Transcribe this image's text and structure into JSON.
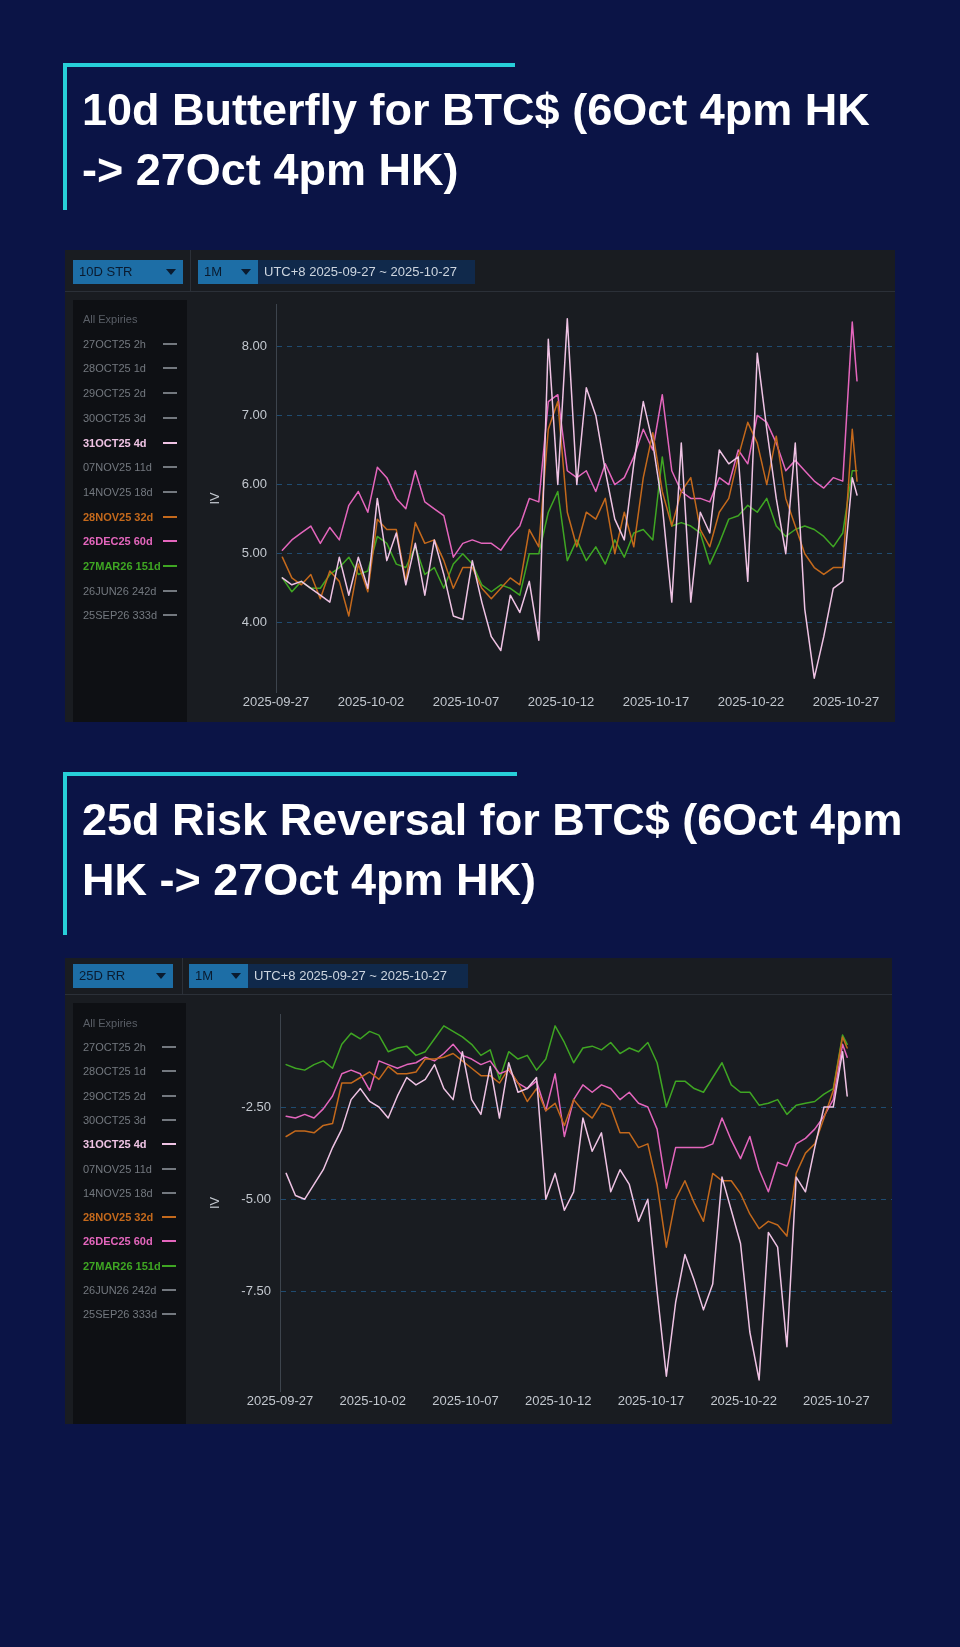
{
  "chart_data": [
    {
      "type": "line",
      "title": "10d Butterfly for BTC$ (6Oct 4pm HK -> 27Oct 4pm HK)",
      "subtitle": "UTC+8 2025-09-27 ~ 2025-10-27",
      "annotations": [
        "10D STR",
        "1M"
      ],
      "ylabel": "IV",
      "legend_title": "All Expiries",
      "legend": "left",
      "grid": "y",
      "marker": "none",
      "line_style": "solid",
      "x": [
        "2025-09-27T08:00",
        "2025-09-27T20:00",
        "2025-09-28T08:00",
        "2025-09-28T20:00",
        "2025-09-29T08:00",
        "2025-09-29T20:00",
        "2025-09-30T08:00",
        "2025-09-30T20:00",
        "2025-10-01T08:00",
        "2025-10-01T20:00",
        "2025-10-02T08:00",
        "2025-10-02T20:00",
        "2025-10-03T08:00",
        "2025-10-03T20:00",
        "2025-10-04T08:00",
        "2025-10-04T20:00",
        "2025-10-05T08:00",
        "2025-10-05T20:00",
        "2025-10-06T08:00",
        "2025-10-06T20:00",
        "2025-10-07T08:00",
        "2025-10-07T20:00",
        "2025-10-08T08:00",
        "2025-10-08T20:00",
        "2025-10-09T08:00",
        "2025-10-09T20:00",
        "2025-10-10T08:00",
        "2025-10-10T20:00",
        "2025-10-11T08:00",
        "2025-10-11T20:00",
        "2025-10-12T08:00",
        "2025-10-12T20:00",
        "2025-10-13T08:00",
        "2025-10-13T20:00",
        "2025-10-14T08:00",
        "2025-10-14T20:00",
        "2025-10-15T08:00",
        "2025-10-15T20:00",
        "2025-10-16T08:00",
        "2025-10-16T20:00",
        "2025-10-17T08:00",
        "2025-10-17T20:00",
        "2025-10-18T08:00",
        "2025-10-18T20:00",
        "2025-10-19T08:00",
        "2025-10-19T20:00",
        "2025-10-20T08:00",
        "2025-10-20T20:00",
        "2025-10-21T08:00",
        "2025-10-21T20:00",
        "2025-10-22T08:00",
        "2025-10-22T20:00",
        "2025-10-23T08:00",
        "2025-10-23T20:00",
        "2025-10-24T08:00",
        "2025-10-24T20:00",
        "2025-10-25T08:00",
        "2025-10-25T20:00",
        "2025-10-26T08:00",
        "2025-10-26T20:00",
        "2025-10-27T08:00",
        "2025-10-27T14:00"
      ],
      "xlim": [
        "2025-09-27T00:00",
        "2025-10-29T14:00"
      ],
      "xticks": [
        "2025-09-27",
        "2025-10-02",
        "2025-10-07",
        "2025-10-12",
        "2025-10-17",
        "2025-10-22",
        "2025-10-27"
      ],
      "ylim": [
        3.0,
        8.6
      ],
      "yticks": [
        {
          "value": 4,
          "label": "4.00"
        },
        {
          "value": 5,
          "label": "5.00"
        },
        {
          "value": 6,
          "label": "6.00"
        },
        {
          "value": 7,
          "label": "7.00"
        },
        {
          "value": 8,
          "label": "8.00"
        }
      ],
      "series": [
        {
          "name": "27OCT25 2h",
          "color": "#73787f",
          "values": [
            null,
            null,
            null,
            null,
            null,
            null,
            null,
            null,
            null,
            null,
            null,
            null,
            null,
            null,
            null,
            null,
            null,
            null,
            null,
            null,
            null,
            null,
            null,
            null,
            null,
            null,
            null,
            null,
            null,
            null,
            null,
            null,
            null,
            null,
            null,
            null,
            null,
            null,
            null,
            null,
            null,
            null,
            null,
            null,
            null,
            null,
            null,
            null,
            null,
            null,
            null,
            null,
            null,
            null,
            null,
            null,
            null,
            null,
            null,
            null,
            null,
            null
          ]
        },
        {
          "name": "28OCT25 1d",
          "color": "#73787f",
          "values": [
            null,
            null,
            null,
            null,
            null,
            null,
            null,
            null,
            null,
            null,
            null,
            null,
            null,
            null,
            null,
            null,
            null,
            null,
            null,
            null,
            null,
            null,
            null,
            null,
            null,
            null,
            null,
            null,
            null,
            null,
            null,
            null,
            null,
            null,
            null,
            null,
            null,
            null,
            null,
            null,
            null,
            null,
            null,
            null,
            null,
            null,
            null,
            null,
            null,
            null,
            null,
            null,
            null,
            null,
            null,
            null,
            null,
            null,
            null,
            null,
            null,
            null
          ]
        },
        {
          "name": "29OCT25 2d",
          "color": "#73787f",
          "values": [
            null,
            null,
            null,
            null,
            null,
            null,
            null,
            null,
            null,
            null,
            null,
            null,
            null,
            null,
            null,
            null,
            null,
            null,
            null,
            null,
            null,
            null,
            null,
            null,
            null,
            null,
            null,
            null,
            null,
            null,
            null,
            null,
            null,
            null,
            null,
            null,
            null,
            null,
            null,
            null,
            null,
            null,
            null,
            null,
            null,
            null,
            null,
            null,
            null,
            null,
            null,
            null,
            null,
            null,
            null,
            null,
            null,
            null,
            null,
            null,
            null,
            null
          ]
        },
        {
          "name": "30OCT25 3d",
          "color": "#73787f",
          "values": [
            null,
            null,
            null,
            null,
            null,
            null,
            null,
            null,
            null,
            null,
            null,
            null,
            null,
            null,
            null,
            null,
            null,
            null,
            null,
            null,
            null,
            null,
            null,
            null,
            null,
            null,
            null,
            null,
            null,
            null,
            null,
            null,
            null,
            null,
            null,
            null,
            null,
            null,
            null,
            null,
            null,
            null,
            null,
            null,
            null,
            null,
            null,
            null,
            null,
            null,
            null,
            null,
            null,
            null,
            null,
            null,
            null,
            null,
            null,
            null,
            null,
            null
          ]
        },
        {
          "name": "31OCT25 4d",
          "color": "#efc3e4",
          "values": [
            4.65,
            4.55,
            4.6,
            4.5,
            4.4,
            4.3,
            4.95,
            4.4,
            4.95,
            4.5,
            5.8,
            4.9,
            5.3,
            4.55,
            5.15,
            4.4,
            5.2,
            4.7,
            4.1,
            4.05,
            4.9,
            4.3,
            3.8,
            3.6,
            4.4,
            4.15,
            4.6,
            3.75,
            8.1,
            6.0,
            8.4,
            6.0,
            7.4,
            7.0,
            6.2,
            5.5,
            5.2,
            6.3,
            7.2,
            6.6,
            5.7,
            4.3,
            6.6,
            4.3,
            5.6,
            5.3,
            6.5,
            6.3,
            6.4,
            4.6,
            7.9,
            6.8,
            5.8,
            5.0,
            6.6,
            4.2,
            3.2,
            3.8,
            4.5,
            4.6,
            6.1,
            5.85
          ]
        },
        {
          "name": "07NOV25 11d",
          "color": "#73787f",
          "values": [
            null,
            null,
            null,
            null,
            null,
            null,
            null,
            null,
            null,
            null,
            null,
            null,
            null,
            null,
            null,
            null,
            null,
            null,
            null,
            null,
            null,
            null,
            null,
            null,
            null,
            null,
            null,
            null,
            null,
            null,
            null,
            null,
            null,
            null,
            null,
            null,
            null,
            null,
            null,
            null,
            null,
            null,
            null,
            null,
            null,
            null,
            null,
            null,
            null,
            null,
            null,
            null,
            null,
            null,
            null,
            null,
            null,
            null,
            null,
            null,
            null,
            null
          ]
        },
        {
          "name": "14NOV25 18d",
          "color": "#73787f",
          "values": [
            null,
            null,
            null,
            null,
            null,
            null,
            null,
            null,
            null,
            null,
            null,
            null,
            null,
            null,
            null,
            null,
            null,
            null,
            null,
            null,
            null,
            null,
            null,
            null,
            null,
            null,
            null,
            null,
            null,
            null,
            null,
            null,
            null,
            null,
            null,
            null,
            null,
            null,
            null,
            null,
            null,
            null,
            null,
            null,
            null,
            null,
            null,
            null,
            null,
            null,
            null,
            null,
            null,
            null,
            null,
            null,
            null,
            null,
            null,
            null,
            null,
            null
          ]
        },
        {
          "name": "28NOV25 32d",
          "color": "#c4691c",
          "values": [
            4.95,
            4.65,
            4.55,
            4.7,
            4.35,
            4.75,
            4.6,
            4.1,
            4.85,
            4.45,
            5.5,
            5.35,
            5.35,
            4.6,
            5.45,
            5.15,
            5.2,
            4.9,
            4.5,
            4.8,
            4.8,
            4.5,
            4.35,
            4.5,
            4.65,
            4.55,
            5.35,
            5.1,
            6.8,
            7.2,
            5.6,
            5.1,
            5.6,
            5.5,
            5.8,
            5.0,
            5.6,
            5.1,
            6.1,
            6.75,
            5.9,
            5.4,
            5.9,
            6.1,
            5.35,
            5.1,
            5.6,
            5.8,
            6.4,
            6.9,
            6.6,
            6.0,
            6.7,
            5.8,
            5.4,
            5.0,
            4.8,
            4.7,
            4.8,
            4.8,
            6.8,
            6.05
          ]
        },
        {
          "name": "26DEC25 60d",
          "color": "#e466bd",
          "values": [
            5.05,
            5.2,
            5.3,
            5.4,
            5.15,
            5.38,
            5.2,
            5.7,
            5.9,
            5.6,
            6.25,
            6.1,
            5.8,
            5.65,
            6.2,
            5.75,
            5.65,
            5.55,
            4.95,
            5.15,
            5.2,
            5.15,
            5.15,
            5.05,
            5.25,
            5.4,
            5.8,
            5.75,
            7.2,
            7.3,
            6.2,
            6.1,
            6.2,
            5.9,
            6.3,
            6.0,
            6.1,
            6.4,
            6.8,
            6.5,
            7.3,
            6.2,
            5.9,
            5.8,
            5.8,
            5.75,
            6.1,
            6.0,
            6.5,
            6.3,
            7.0,
            6.9,
            6.6,
            6.2,
            6.35,
            6.2,
            6.05,
            5.95,
            6.1,
            6.05,
            8.35,
            7.5
          ]
        },
        {
          "name": "27MAR26 151d",
          "color": "#3fa623",
          "values": [
            4.65,
            4.45,
            4.6,
            4.5,
            4.5,
            4.7,
            4.8,
            4.95,
            4.7,
            4.75,
            5.25,
            5.15,
            4.85,
            4.8,
            5.1,
            4.7,
            4.8,
            4.5,
            4.85,
            5.0,
            4.85,
            4.55,
            4.45,
            4.55,
            4.5,
            4.4,
            5.0,
            5.0,
            5.6,
            5.9,
            4.9,
            5.2,
            4.9,
            5.1,
            4.85,
            5.2,
            4.95,
            5.3,
            5.35,
            5.2,
            6.4,
            5.4,
            5.45,
            5.4,
            5.3,
            4.85,
            5.15,
            5.5,
            5.55,
            5.7,
            5.6,
            5.8,
            5.4,
            5.25,
            5.35,
            5.4,
            5.35,
            5.25,
            5.1,
            5.3,
            6.2,
            6.2
          ]
        },
        {
          "name": "26JUN26 242d",
          "color": "#73787f",
          "values": [
            null,
            null,
            null,
            null,
            null,
            null,
            null,
            null,
            null,
            null,
            null,
            null,
            null,
            null,
            null,
            null,
            null,
            null,
            null,
            null,
            null,
            null,
            null,
            null,
            null,
            null,
            null,
            null,
            null,
            null,
            null,
            null,
            null,
            null,
            null,
            null,
            null,
            null,
            null,
            null,
            null,
            null,
            null,
            null,
            null,
            null,
            null,
            null,
            null,
            null,
            null,
            null,
            null,
            null,
            null,
            null,
            null,
            null,
            null,
            null,
            null,
            null
          ]
        },
        {
          "name": "25SEP26 333d",
          "color": "#73787f",
          "values": [
            null,
            null,
            null,
            null,
            null,
            null,
            null,
            null,
            null,
            null,
            null,
            null,
            null,
            null,
            null,
            null,
            null,
            null,
            null,
            null,
            null,
            null,
            null,
            null,
            null,
            null,
            null,
            null,
            null,
            null,
            null,
            null,
            null,
            null,
            null,
            null,
            null,
            null,
            null,
            null,
            null,
            null,
            null,
            null,
            null,
            null,
            null,
            null,
            null,
            null,
            null,
            null,
            null,
            null,
            null,
            null,
            null,
            null,
            null,
            null,
            null,
            null
          ]
        }
      ]
    },
    {
      "type": "line",
      "title": "25d Risk Reversal for BTC$ (6Oct 4pm HK -> 27Oct 4pm HK)",
      "subtitle": "UTC+8 2025-09-27 ~ 2025-10-27",
      "annotations": [
        "25D RR",
        "1M"
      ],
      "ylabel": "IV",
      "legend_title": "All Expiries",
      "legend": "left",
      "grid": "y",
      "marker": "none",
      "line_style": "solid",
      "x": [
        "2025-09-27T08:00",
        "2025-09-27T20:00",
        "2025-09-28T08:00",
        "2025-09-28T20:00",
        "2025-09-29T08:00",
        "2025-09-29T20:00",
        "2025-09-30T08:00",
        "2025-09-30T20:00",
        "2025-10-01T08:00",
        "2025-10-01T20:00",
        "2025-10-02T08:00",
        "2025-10-02T20:00",
        "2025-10-03T08:00",
        "2025-10-03T20:00",
        "2025-10-04T08:00",
        "2025-10-04T20:00",
        "2025-10-05T08:00",
        "2025-10-05T20:00",
        "2025-10-06T08:00",
        "2025-10-06T20:00",
        "2025-10-07T08:00",
        "2025-10-07T20:00",
        "2025-10-08T08:00",
        "2025-10-08T20:00",
        "2025-10-09T08:00",
        "2025-10-09T20:00",
        "2025-10-10T08:00",
        "2025-10-10T20:00",
        "2025-10-11T08:00",
        "2025-10-11T20:00",
        "2025-10-12T08:00",
        "2025-10-12T20:00",
        "2025-10-13T08:00",
        "2025-10-13T20:00",
        "2025-10-14T08:00",
        "2025-10-14T20:00",
        "2025-10-15T08:00",
        "2025-10-15T20:00",
        "2025-10-16T08:00",
        "2025-10-16T20:00",
        "2025-10-17T08:00",
        "2025-10-17T20:00",
        "2025-10-18T08:00",
        "2025-10-18T20:00",
        "2025-10-19T08:00",
        "2025-10-19T20:00",
        "2025-10-20T08:00",
        "2025-10-20T20:00",
        "2025-10-21T08:00",
        "2025-10-21T20:00",
        "2025-10-22T08:00",
        "2025-10-22T20:00",
        "2025-10-23T08:00",
        "2025-10-23T20:00",
        "2025-10-24T08:00",
        "2025-10-24T20:00",
        "2025-10-25T08:00",
        "2025-10-25T20:00",
        "2025-10-26T08:00",
        "2025-10-26T20:00",
        "2025-10-27T08:00",
        "2025-10-27T14:00"
      ],
      "xlim": [
        "2025-09-27T00:00",
        "2025-10-30T00:00"
      ],
      "xticks": [
        "2025-09-27",
        "2025-10-02",
        "2025-10-07",
        "2025-10-12",
        "2025-10-17",
        "2025-10-22",
        "2025-10-27"
      ],
      "ylim": [
        -10.2,
        0
      ],
      "yticks": [
        {
          "value": -7.5,
          "label": "-7.50"
        },
        {
          "value": -5,
          "label": "-5.00"
        },
        {
          "value": -2.5,
          "label": "-2.50"
        }
      ],
      "series": [
        {
          "name": "27OCT25 2h",
          "color": "#73787f",
          "values": [
            null,
            null,
            null,
            null,
            null,
            null,
            null,
            null,
            null,
            null,
            null,
            null,
            null,
            null,
            null,
            null,
            null,
            null,
            null,
            null,
            null,
            null,
            null,
            null,
            null,
            null,
            null,
            null,
            null,
            null,
            null,
            null,
            null,
            null,
            null,
            null,
            null,
            null,
            null,
            null,
            null,
            null,
            null,
            null,
            null,
            null,
            null,
            null,
            null,
            null,
            null,
            null,
            null,
            null,
            null,
            null,
            null,
            null,
            null,
            null,
            null,
            null
          ]
        },
        {
          "name": "28OCT25 1d",
          "color": "#73787f",
          "values": [
            null,
            null,
            null,
            null,
            null,
            null,
            null,
            null,
            null,
            null,
            null,
            null,
            null,
            null,
            null,
            null,
            null,
            null,
            null,
            null,
            null,
            null,
            null,
            null,
            null,
            null,
            null,
            null,
            null,
            null,
            null,
            null,
            null,
            null,
            null,
            null,
            null,
            null,
            null,
            null,
            null,
            null,
            null,
            null,
            null,
            null,
            null,
            null,
            null,
            null,
            null,
            null,
            null,
            null,
            null,
            null,
            null,
            null,
            null,
            null,
            null,
            null
          ]
        },
        {
          "name": "29OCT25 2d",
          "color": "#73787f",
          "values": [
            null,
            null,
            null,
            null,
            null,
            null,
            null,
            null,
            null,
            null,
            null,
            null,
            null,
            null,
            null,
            null,
            null,
            null,
            null,
            null,
            null,
            null,
            null,
            null,
            null,
            null,
            null,
            null,
            null,
            null,
            null,
            null,
            null,
            null,
            null,
            null,
            null,
            null,
            null,
            null,
            null,
            null,
            null,
            null,
            null,
            null,
            null,
            null,
            null,
            null,
            null,
            null,
            null,
            null,
            null,
            null,
            null,
            null,
            null,
            null,
            null,
            null
          ]
        },
        {
          "name": "30OCT25 3d",
          "color": "#73787f",
          "values": [
            null,
            null,
            null,
            null,
            null,
            null,
            null,
            null,
            null,
            null,
            null,
            null,
            null,
            null,
            null,
            null,
            null,
            null,
            null,
            null,
            null,
            null,
            null,
            null,
            null,
            null,
            null,
            null,
            null,
            null,
            null,
            null,
            null,
            null,
            null,
            null,
            null,
            null,
            null,
            null,
            null,
            null,
            null,
            null,
            null,
            null,
            null,
            null,
            null,
            null,
            null,
            null,
            null,
            null,
            null,
            null,
            null,
            null,
            null,
            null,
            null,
            null
          ]
        },
        {
          "name": "31OCT25 4d",
          "color": "#efc3e4",
          "values": [
            -4.3,
            -4.9,
            -5.0,
            -4.6,
            -4.2,
            -3.6,
            -3.1,
            -2.3,
            -2.0,
            -2.35,
            -2.5,
            -2.8,
            -2.2,
            -1.7,
            -1.9,
            -1.75,
            -1.35,
            -2.0,
            -2.3,
            -1.0,
            -2.3,
            -2.7,
            -1.4,
            -2.8,
            -1.3,
            -2.1,
            -2.0,
            -1.7,
            -5.0,
            -4.3,
            -5.3,
            -4.8,
            -2.8,
            -3.7,
            -3.2,
            -4.8,
            -4.2,
            -4.6,
            -5.6,
            -5.0,
            -7.5,
            -9.8,
            -7.8,
            -6.5,
            -7.2,
            -8.0,
            -7.3,
            -4.4,
            -5.3,
            -6.2,
            -8.6,
            -9.9,
            -5.9,
            -6.3,
            -9.0,
            -4.4,
            -4.8,
            -3.6,
            -2.5,
            -2.5,
            -1.0,
            -2.2
          ]
        },
        {
          "name": "07NOV25 11d",
          "color": "#73787f",
          "values": [
            null,
            null,
            null,
            null,
            null,
            null,
            null,
            null,
            null,
            null,
            null,
            null,
            null,
            null,
            null,
            null,
            null,
            null,
            null,
            null,
            null,
            null,
            null,
            null,
            null,
            null,
            null,
            null,
            null,
            null,
            null,
            null,
            null,
            null,
            null,
            null,
            null,
            null,
            null,
            null,
            null,
            null,
            null,
            null,
            null,
            null,
            null,
            null,
            null,
            null,
            null,
            null,
            null,
            null,
            null,
            null,
            null,
            null,
            null,
            null,
            null,
            null
          ]
        },
        {
          "name": "14NOV25 18d",
          "color": "#73787f",
          "values": [
            null,
            null,
            null,
            null,
            null,
            null,
            null,
            null,
            null,
            null,
            null,
            null,
            null,
            null,
            null,
            null,
            null,
            null,
            null,
            null,
            null,
            null,
            null,
            null,
            null,
            null,
            null,
            null,
            null,
            null,
            null,
            null,
            null,
            null,
            null,
            null,
            null,
            null,
            null,
            null,
            null,
            null,
            null,
            null,
            null,
            null,
            null,
            null,
            null,
            null,
            null,
            null,
            null,
            null,
            null,
            null,
            null,
            null,
            null,
            null,
            null,
            null
          ]
        },
        {
          "name": "28NOV25 32d",
          "color": "#c4691c",
          "values": [
            -3.3,
            -3.15,
            -3.15,
            -3.2,
            -3.0,
            -2.95,
            -1.85,
            -1.85,
            -1.7,
            -1.55,
            -1.75,
            -1.4,
            -1.6,
            -1.6,
            -1.55,
            -1.2,
            -1.2,
            -1.15,
            -1.05,
            -1.25,
            -1.45,
            -1.65,
            -1.65,
            -1.85,
            -1.45,
            -1.85,
            -2.35,
            -2.0,
            -2.6,
            -2.4,
            -3.0,
            -2.3,
            -2.6,
            -2.8,
            -2.4,
            -2.5,
            -3.2,
            -3.2,
            -3.6,
            -3.5,
            -4.6,
            -6.3,
            -5.0,
            -4.5,
            -5.1,
            -5.6,
            -4.3,
            -4.5,
            -4.5,
            -4.85,
            -5.4,
            -5.8,
            -5.6,
            -5.7,
            -6.0,
            -4.3,
            -3.75,
            -3.5,
            -2.8,
            -2.05,
            -0.6,
            -0.9
          ]
        },
        {
          "name": "26DEC25 60d",
          "color": "#e466bd",
          "values": [
            -2.75,
            -2.8,
            -2.7,
            -2.8,
            -2.55,
            -2.2,
            -1.6,
            -1.5,
            -1.6,
            -2.05,
            -1.25,
            -1.35,
            -1.45,
            -1.35,
            -1.3,
            -1.15,
            -1.25,
            -1.05,
            -0.8,
            -1.1,
            -1.2,
            -1.35,
            -1.25,
            -1.6,
            -1.5,
            -1.85,
            -2.0,
            -1.8,
            -2.6,
            -1.6,
            -3.3,
            -2.3,
            -1.9,
            -2.1,
            -1.9,
            -2.0,
            -2.3,
            -2.1,
            -2.4,
            -2.5,
            -3.1,
            -4.7,
            -3.6,
            -3.6,
            -3.6,
            -3.6,
            -3.5,
            -2.8,
            -3.4,
            -3.9,
            -3.3,
            -4.2,
            -4.8,
            -4.0,
            -4.1,
            -3.5,
            -3.35,
            -3.1,
            -2.75,
            -2.3,
            -0.8,
            -1.15
          ]
        },
        {
          "name": "27MAR26 151d",
          "color": "#3fa623",
          "values": [
            -1.35,
            -1.45,
            -1.5,
            -1.35,
            -1.25,
            -1.45,
            -0.8,
            -0.5,
            -0.65,
            -0.45,
            -0.55,
            -1.0,
            -0.9,
            -0.85,
            -1.1,
            -1.0,
            -0.65,
            -0.3,
            -0.45,
            -0.6,
            -0.8,
            -1.1,
            -0.95,
            -1.75,
            -1.0,
            -1.2,
            -1.1,
            -1.5,
            -1.2,
            -0.3,
            -0.75,
            -1.3,
            -0.9,
            -0.85,
            -0.95,
            -0.75,
            -1.05,
            -0.9,
            -1.0,
            -0.75,
            -1.3,
            -2.5,
            -1.8,
            -1.8,
            -2.0,
            -2.1,
            -1.7,
            -1.3,
            -1.9,
            -2.1,
            -2.1,
            -2.45,
            -2.4,
            -2.3,
            -2.7,
            -2.45,
            -2.4,
            -2.35,
            -2.15,
            -2.0,
            -0.55,
            -0.8
          ]
        },
        {
          "name": "26JUN26 242d",
          "color": "#73787f",
          "values": [
            null,
            null,
            null,
            null,
            null,
            null,
            null,
            null,
            null,
            null,
            null,
            null,
            null,
            null,
            null,
            null,
            null,
            null,
            null,
            null,
            null,
            null,
            null,
            null,
            null,
            null,
            null,
            null,
            null,
            null,
            null,
            null,
            null,
            null,
            null,
            null,
            null,
            null,
            null,
            null,
            null,
            null,
            null,
            null,
            null,
            null,
            null,
            null,
            null,
            null,
            null,
            null,
            null,
            null,
            null,
            null,
            null,
            null,
            null,
            null,
            null,
            null
          ]
        },
        {
          "name": "25SEP26 333d",
          "color": "#73787f",
          "values": [
            null,
            null,
            null,
            null,
            null,
            null,
            null,
            null,
            null,
            null,
            null,
            null,
            null,
            null,
            null,
            null,
            null,
            null,
            null,
            null,
            null,
            null,
            null,
            null,
            null,
            null,
            null,
            null,
            null,
            null,
            null,
            null,
            null,
            null,
            null,
            null,
            null,
            null,
            null,
            null,
            null,
            null,
            null,
            null,
            null,
            null,
            null,
            null,
            null,
            null,
            null,
            null,
            null,
            null,
            null,
            null,
            null,
            null,
            null,
            null,
            null,
            null
          ]
        }
      ]
    }
  ]
}
